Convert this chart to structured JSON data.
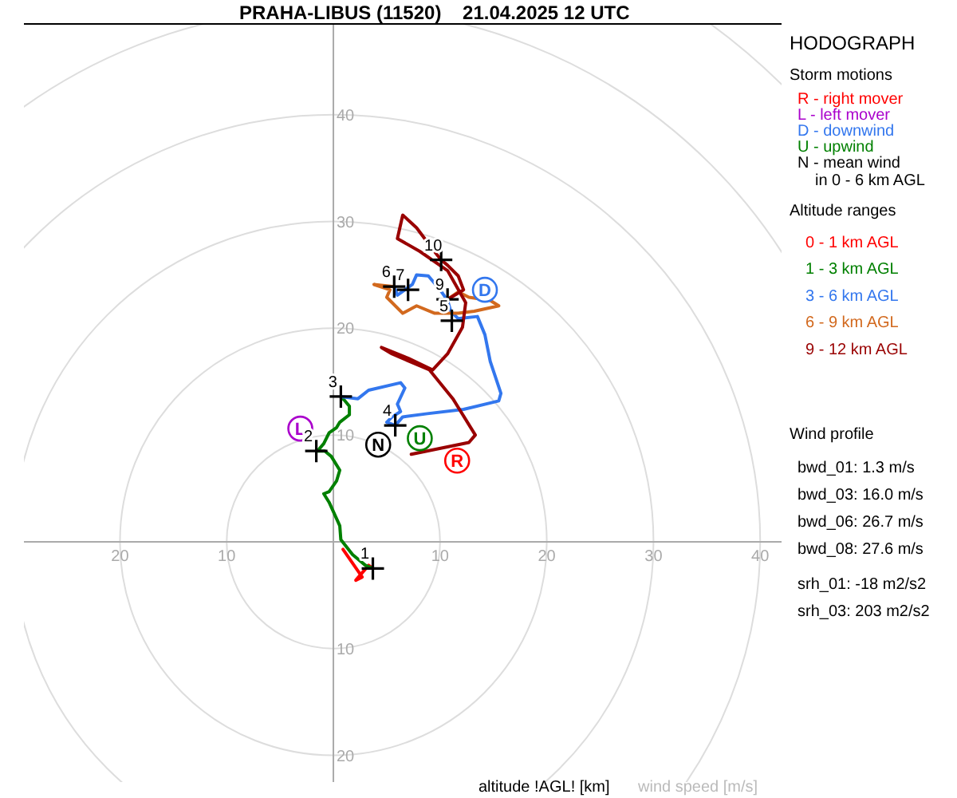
{
  "chart_data": {
    "type": "line",
    "title": "PRAHA-LIBUS (11520)    21.04.2025 12 UTC",
    "xlim": [
      -29,
      42
    ],
    "ylim": [
      -22.5,
      48.5
    ],
    "xticks": [
      {
        "value": -20,
        "label": "20"
      },
      {
        "value": -10,
        "label": "10"
      },
      10,
      20,
      30,
      40
    ],
    "yticks": [
      {
        "value": -20,
        "label": "20"
      },
      {
        "value": -10,
        "label": "10"
      },
      10,
      20,
      30,
      40
    ],
    "legend": "right",
    "legend_title": "Altitude ranges",
    "line_style": "solid",
    "annotations": [
      "HODOGRAPH",
      "Storm motions",
      "R - right mover",
      "L - left mover",
      "D - downwind",
      "U - upwind",
      "N - mean wind\nin 0 - 6 km AGL",
      "Wind profile",
      "bwd_01: 1.3 m/s",
      "bwd_03: 16.0 m/s",
      "bwd_06: 26.7 m/s",
      "bwd_08: 27.6 m/s",
      "srh_01: -18 m2/s2",
      "srh_03: 203 m2/s2",
      "altitude !AGL! [km]",
      "wind speed [m/s]",
      {
        "text": "1",
        "x": 3.7,
        "y": -2.5
      },
      {
        "text": "2",
        "x": -1.6,
        "y": 8.5
      },
      {
        "text": "3",
        "x": 0.7,
        "y": 13.6
      },
      {
        "text": "4",
        "x": 5.8,
        "y": 10.9
      },
      {
        "text": "5",
        "x": 11.1,
        "y": 20.7
      },
      {
        "text": "6",
        "x": 5.7,
        "y": 23.9
      },
      {
        "text": "7",
        "x": 7.0,
        "y": 23.6
      },
      {
        "text": "9",
        "x": 10.7,
        "y": 22.7
      },
      {
        "text": "10",
        "x": 10.1,
        "y": 26.4
      }
    ],
    "series": [
      {
        "name": "0 - 1 km AGL",
        "color": "#ff0000",
        "x": [
          0.9,
          2.7,
          2.1,
          3.3,
          3.7
        ],
        "values": [
          -0.7,
          -3.3,
          -3.6,
          -2.2,
          -2.5
        ]
      },
      {
        "name": "1 - 3 km AGL",
        "color": "#008000",
        "x": [
          3.7,
          3.0,
          1.8,
          0.7,
          0.6,
          -0.4,
          -0.9,
          -0.4,
          0.3,
          0.6,
          -0.2,
          -0.8,
          -1.5,
          -0.9,
          -0.4,
          0.3,
          0.6,
          1.5,
          1.5,
          1.0,
          0.7
        ],
        "values": [
          -2.5,
          -2.2,
          -1.2,
          0.2,
          1.5,
          3.7,
          4.5,
          4.7,
          5.7,
          6.7,
          8.0,
          8.5,
          8.5,
          9.2,
          10.2,
          10.7,
          11.2,
          11.9,
          12.7,
          13.3,
          13.6
        ]
      },
      {
        "name": "3 - 6 km AGL",
        "color": "#3377ee",
        "x": [
          0.7,
          2.3,
          3.3,
          6.3,
          6.7,
          6.0,
          6.3,
          5.5,
          5.0,
          5.8,
          6.5,
          8.8,
          12.2,
          15.5,
          15.7,
          14.7,
          14.5,
          14.2,
          13.5,
          11.7,
          11.0,
          10.7,
          10.0,
          8.9,
          7.8,
          7.4,
          6.0,
          5.7
        ],
        "values": [
          13.6,
          13.4,
          14.2,
          14.9,
          14.4,
          12.9,
          12.2,
          11.7,
          11.2,
          10.9,
          11.7,
          12.0,
          12.4,
          13.2,
          13.9,
          16.9,
          17.9,
          19.4,
          21.1,
          20.9,
          21.6,
          22.6,
          23.6,
          24.9,
          25.0,
          24.1,
          23.1,
          23.9
        ]
      },
      {
        "name": "6 - 9 km AGL",
        "color": "#d2691e",
        "x": [
          5.7,
          3.8,
          5.3,
          5.0,
          6.5,
          7.8,
          9.5,
          11.7,
          13.2,
          15.5,
          14.7,
          12.7,
          11.7,
          10.7
        ],
        "values": [
          23.9,
          24.1,
          23.6,
          22.9,
          21.4,
          22.1,
          21.4,
          21.4,
          21.6,
          22.1,
          22.6,
          22.9,
          23.4,
          22.7
        ]
      },
      {
        "name": "9 - 12 km AGL",
        "color": "#990000",
        "x": [
          10.7,
          12.2,
          11.7,
          10.7,
          10.1,
          9.3,
          7.8,
          6.5,
          6.0,
          8.1,
          10.7,
          12.4,
          12.1,
          10.7,
          9.3,
          7.0,
          4.5,
          5.5,
          9.0,
          11.2,
          13.3,
          12.7,
          7.3
        ],
        "values": [
          22.7,
          23.6,
          24.9,
          25.9,
          26.4,
          27.4,
          29.4,
          30.6,
          28.4,
          27.2,
          25.4,
          22.4,
          20.1,
          17.6,
          16.1,
          17.2,
          18.2,
          17.6,
          16.1,
          13.4,
          10.0,
          9.3,
          8.2
        ]
      },
      {
        "type": "scatter",
        "marker": "cross",
        "color": "#000000",
        "x": [
          3.7,
          -1.6,
          0.7,
          5.8,
          11.1,
          5.7,
          7.0,
          10.7,
          10.1
        ],
        "values": [
          -2.5,
          8.5,
          13.6,
          10.9,
          20.7,
          23.9,
          23.6,
          22.7,
          26.4
        ]
      },
      {
        "type": "scatter",
        "marker": "circle",
        "colors": [
          "#ff0000",
          "#aa00cc",
          "#3377ee",
          "#008000",
          "#000000"
        ],
        "x": [
          11.6,
          -3.1,
          14.2,
          8.1,
          4.2
        ],
        "values": [
          7.6,
          10.6,
          23.6,
          9.7,
          9.1
        ],
        "value_labels": [
          "R",
          "L",
          "D",
          "U",
          "N"
        ]
      }
    ]
  }
}
